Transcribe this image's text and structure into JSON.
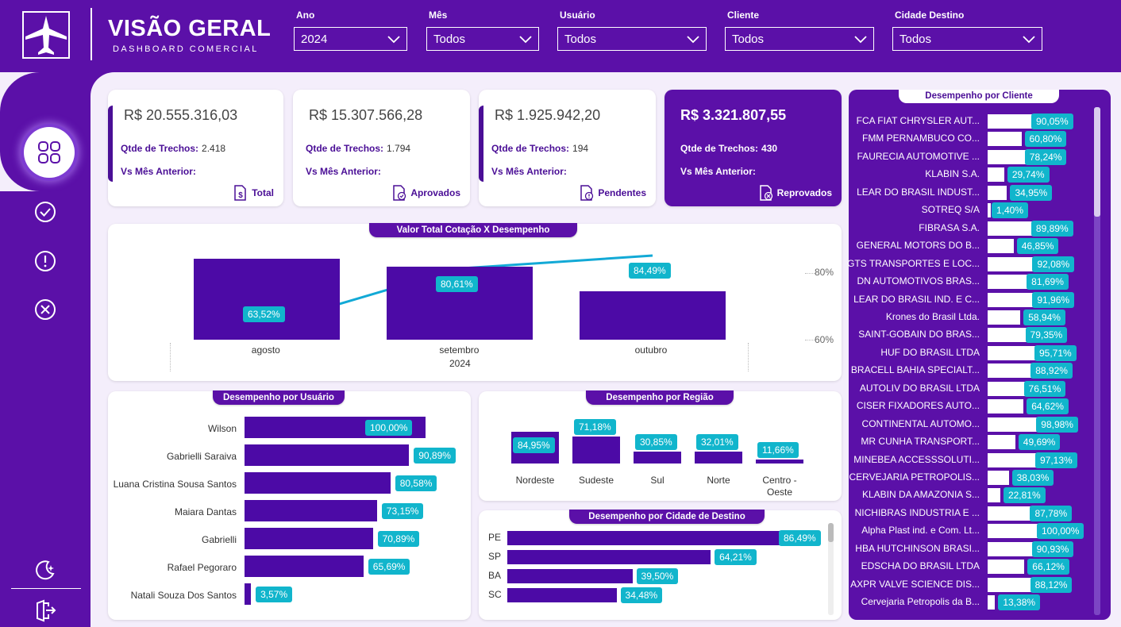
{
  "header": {
    "title": "VISÃO GERAL",
    "subtitle": "DASHBOARD COMERCIAL"
  },
  "filters": [
    {
      "label": "Ano",
      "value": "2024"
    },
    {
      "label": "Mês",
      "value": "Todos"
    },
    {
      "label": "Usuário",
      "value": "Todos"
    },
    {
      "label": "Cliente",
      "value": "Todos"
    },
    {
      "label": "Cidade Destino",
      "value": "Todos"
    }
  ],
  "nav": {
    "icons": [
      "dashboard-icon",
      "check-circle-icon",
      "alert-circle-icon",
      "x-circle-icon",
      "theme-icon",
      "logout-icon"
    ]
  },
  "kpis": [
    {
      "amount": "R$ 20.555.316,03",
      "trechos_label": "Qtde de Trechos:",
      "trechos": "2.418",
      "vs_label": "Vs Mês Anterior:",
      "footer": "Total"
    },
    {
      "amount": "R$ 15.307.566,28",
      "trechos_label": "Qtde de Trechos:",
      "trechos": "1.794",
      "vs_label": "Vs Mês Anterior:",
      "footer": "Aprovados"
    },
    {
      "amount": "R$ 1.925.942,20",
      "trechos_label": "Qtde de Trechos:",
      "trechos": "194",
      "vs_label": "Vs Mês Anterior:",
      "footer": "Pendentes"
    },
    {
      "amount": "R$ 3.321.807,55",
      "trechos_label": "Qtde de Trechos:",
      "trechos": "430",
      "vs_label": "Vs Mês Anterior:",
      "footer": "Reprovados"
    }
  ],
  "chart_data": [
    {
      "type": "bar",
      "title": "Valor Total Cotação X Desempenho",
      "categories": [
        "agosto",
        "setembro",
        "outubro"
      ],
      "x_group_label": "2024",
      "series": [
        {
          "values": [
            20.5,
            18.6,
            12.3
          ]
        },
        {
          "values": [
            63.52,
            80.61,
            84.49
          ]
        }
      ],
      "data_labels": [
        "63,52%",
        "80,61%",
        "84,49%"
      ],
      "y2_ticks": [
        "80%",
        "60%"
      ]
    },
    {
      "type": "bar",
      "title": "Desempenho por Usuário",
      "categories": [
        "Wilson",
        "Gabrielli Saraiva",
        "Luana Cristina Sousa Santos",
        "Maiara Dantas",
        "Gabrielli",
        "Rafael Pegoraro",
        "Natali Souza Dos Santos"
      ],
      "values": [
        100.0,
        90.89,
        80.58,
        73.15,
        70.89,
        65.69,
        3.57
      ],
      "labels": [
        "100,00%",
        "90,89%",
        "80,58%",
        "73,15%",
        "70,89%",
        "65,69%",
        "3,57%"
      ]
    },
    {
      "type": "bar",
      "title": "Desempenho por Região",
      "categories": [
        "Nordeste",
        "Sudeste",
        "Sul",
        "Norte",
        "Centro - Oeste"
      ],
      "values": [
        84.95,
        71.18,
        30.85,
        32.01,
        11.66
      ],
      "labels": [
        "84,95%",
        "71,18%",
        "30,85%",
        "32,01%",
        "11,66%"
      ]
    },
    {
      "type": "bar",
      "title": "Desempenho por Cidade de Destino",
      "categories": [
        "PE",
        "SP",
        "BA",
        "SC"
      ],
      "values": [
        86.49,
        64.21,
        39.5,
        34.48
      ],
      "labels": [
        "86,49%",
        "64,21%",
        "39,50%",
        "34,48%"
      ]
    },
    {
      "type": "bar",
      "title": "Desempenho por Cliente",
      "categories": [
        "FCA FIAT CHRYSLER AUT...",
        "FMM PERNAMBUCO CO...",
        "FAURECIA AUTOMOTIVE ...",
        "KLABIN S.A.",
        "LEAR DO BRASIL INDUST...",
        "SOTREQ S/A",
        "FIBRASA S.A.",
        "GENERAL MOTORS DO B...",
        "GTS TRANSPORTES E LOC...",
        "DN AUTOMOTIVOS BRAS...",
        "LEAR DO BRASIL IND. E C...",
        "Krones do Brasil Ltda.",
        "SAINT-GOBAIN DO BRAS...",
        "HUF DO BRASIL LTDA",
        "BRACELL BAHIA SPECIALT...",
        "AUTOLIV DO BRASIL LTDA",
        "CISER FIXADORES AUTO...",
        "CONTINENTAL AUTOMO...",
        "MR CUNHA TRANSPORT...",
        "MINEBEA ACCESSSOLUTI...",
        "CERVEJARIA PETROPOLIS...",
        "KLABIN DA AMAZONIA S...",
        "NICHIBRAS INDUSTRIA E ...",
        "Alpha Plast ind. e Com. Lt...",
        "HBA HUTCHINSON BRASI...",
        "EDSCHA DO BRASIL LTDA",
        "AXPR VALVE SCIENCE DIS...",
        "Cervejaria Petropolis da B..."
      ],
      "values": [
        90.05,
        60.8,
        78.24,
        29.74,
        34.95,
        1.4,
        89.89,
        46.85,
        92.08,
        81.69,
        91.96,
        58.94,
        79.35,
        95.71,
        88.92,
        76.51,
        64.62,
        98.98,
        49.69,
        97.13,
        38.03,
        22.81,
        87.78,
        100.0,
        90.93,
        66.12,
        88.12,
        13.38
      ],
      "labels": [
        "90,05%",
        "60,80%",
        "78,24%",
        "29,74%",
        "34,95%",
        "1,40%",
        "89,89%",
        "46,85%",
        "92,08%",
        "81,69%",
        "91,96%",
        "58,94%",
        "79,35%",
        "95,71%",
        "88,92%",
        "76,51%",
        "64,62%",
        "98,98%",
        "49,69%",
        "97,13%",
        "38,03%",
        "22,81%",
        "87,78%",
        "100,00%",
        "90,93%",
        "66,12%",
        "88,12%",
        "13,38%"
      ]
    }
  ],
  "colors": {
    "primary": "#5b10a8",
    "bar": "#4c0aa6",
    "accent": "#11b5cc",
    "background": "#f4eefb"
  }
}
